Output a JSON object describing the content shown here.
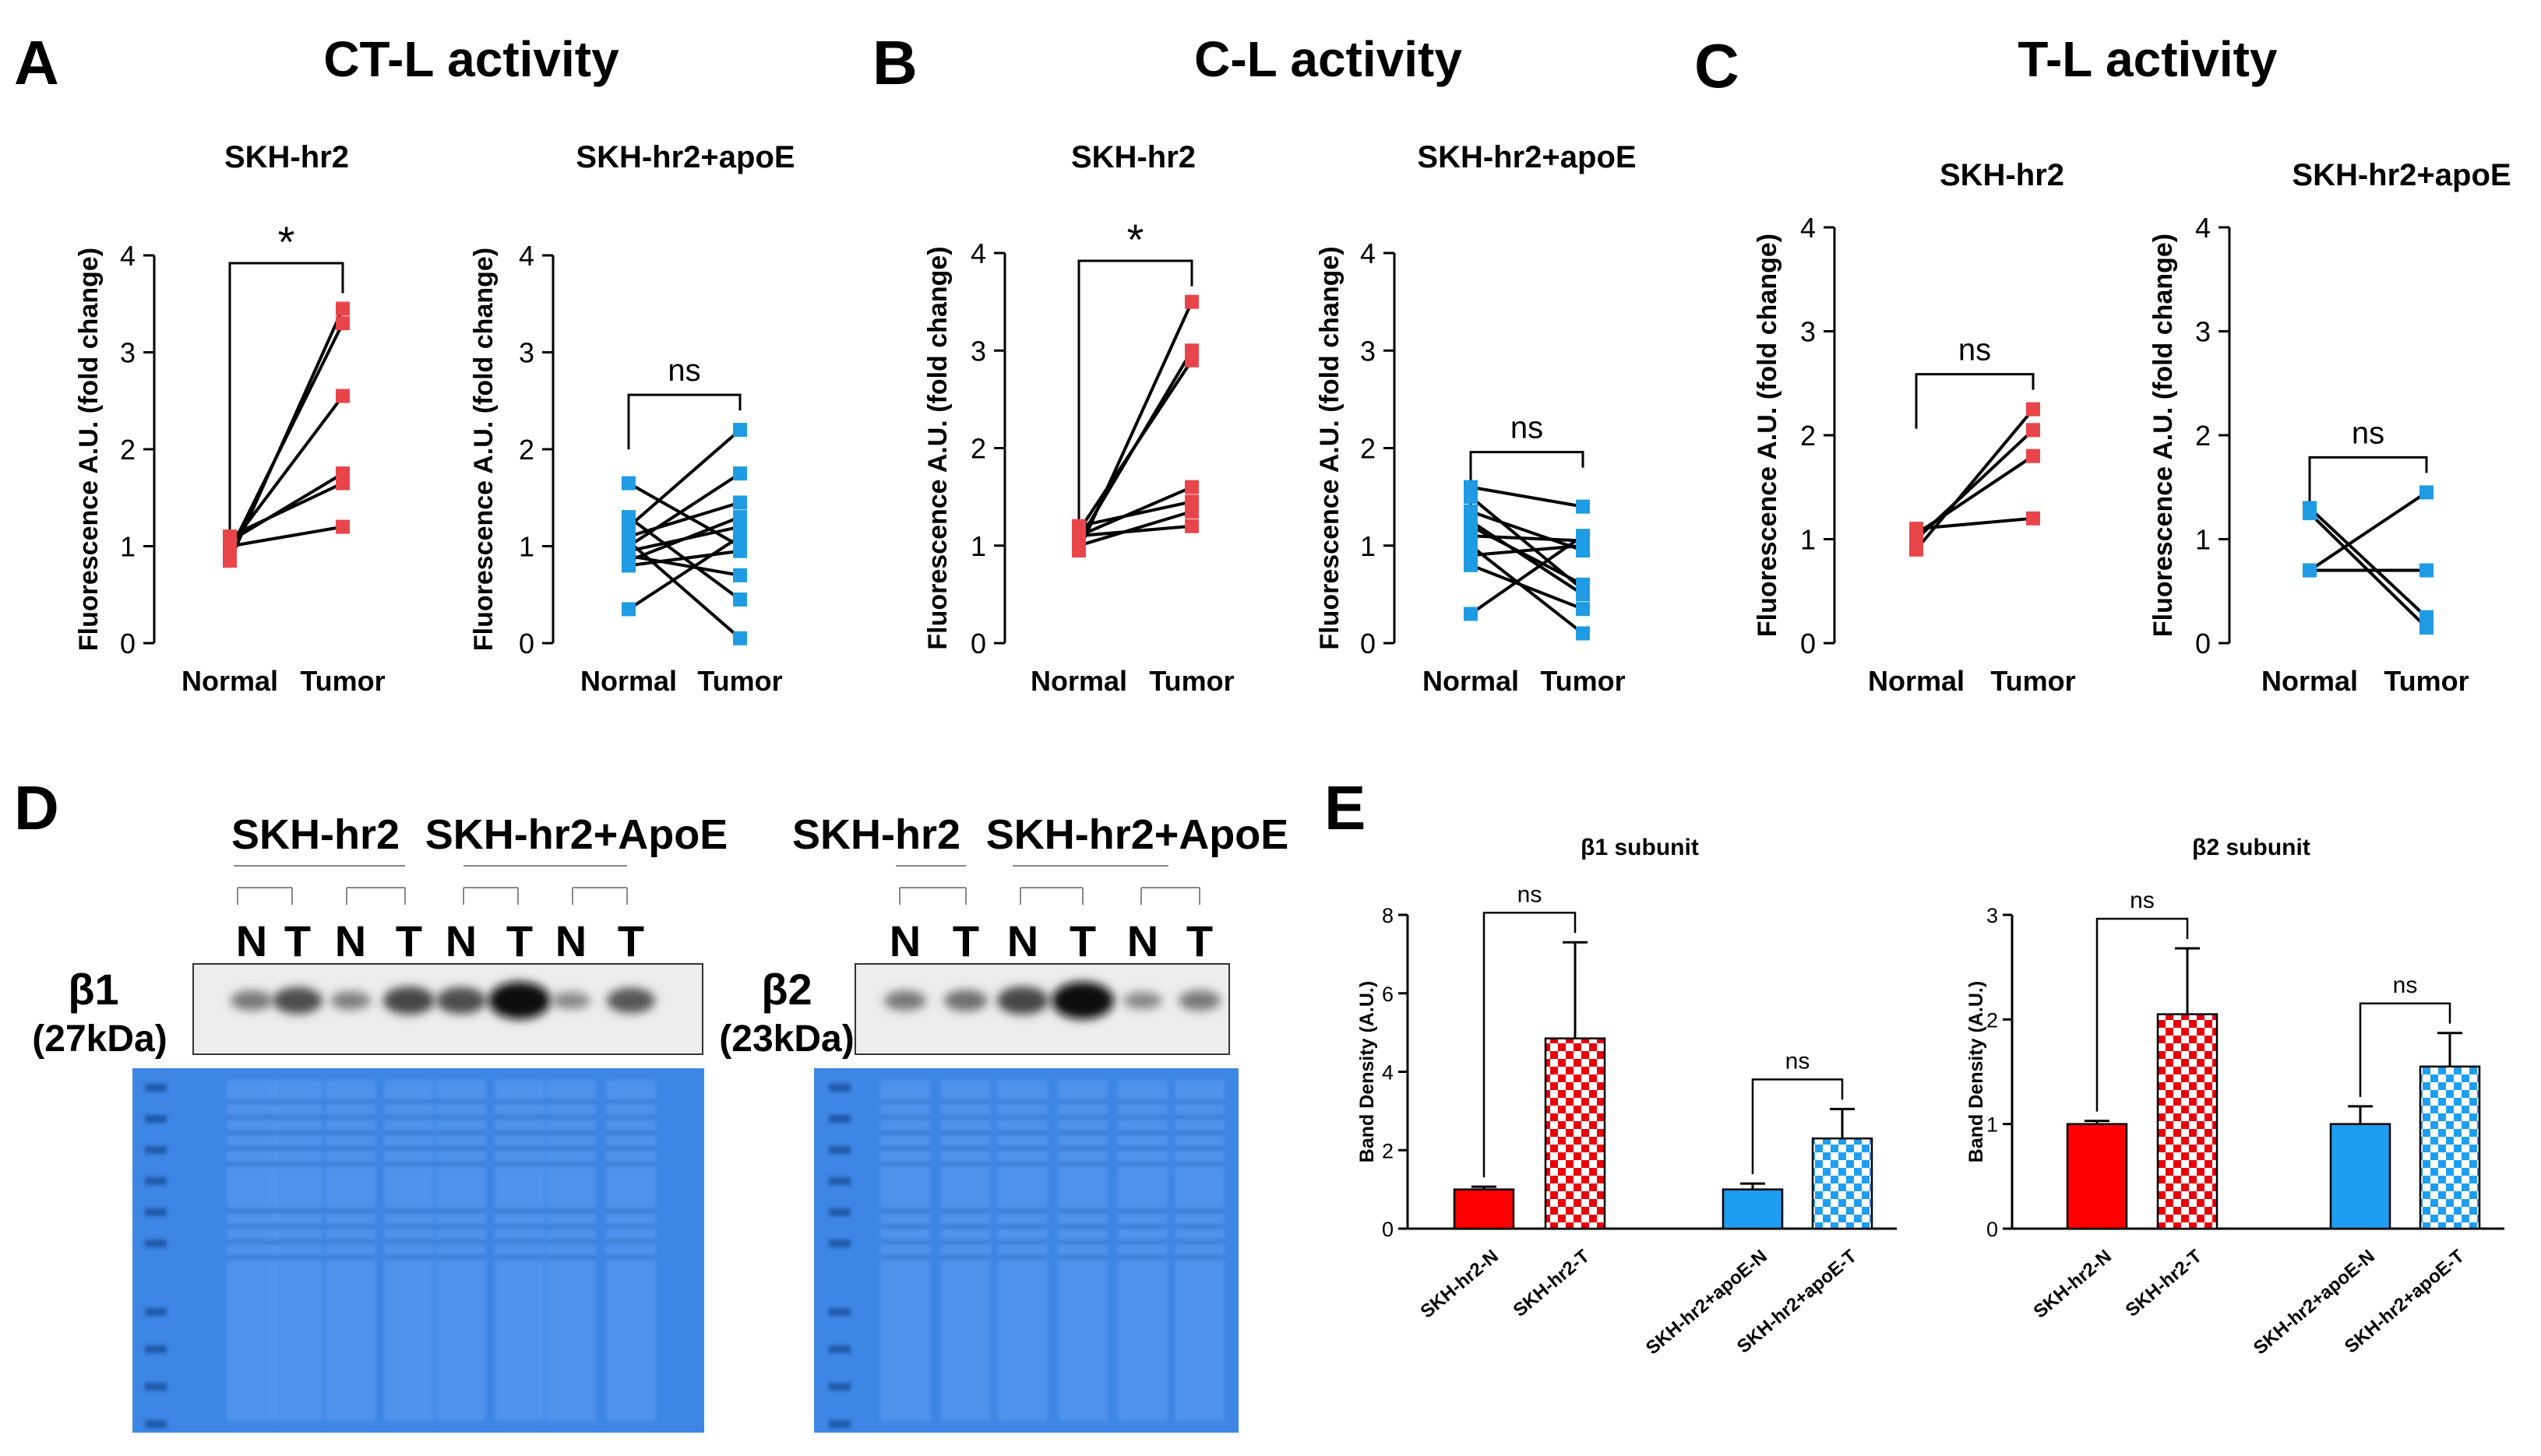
{
  "panels": {
    "A": {
      "letter": "A",
      "title": "CT-L activity"
    },
    "B": {
      "letter": "B",
      "title": "C-L activity"
    },
    "C": {
      "letter": "C",
      "title": "T-L activity"
    },
    "D": {
      "letter": "D"
    },
    "E": {
      "letter": "E"
    }
  },
  "colors": {
    "red": "#e8454a",
    "blue": "#1e9be3",
    "bar_red": "#ff0000",
    "bar_blue": "#1e9ef0",
    "gel": "#3d86e6",
    "black": "#000000"
  },
  "blot": {
    "left": {
      "group1": "SKH-hr2",
      "group2": "SKH-hr2+ApoE",
      "lanes": [
        "N",
        "T",
        "N",
        "T",
        "N",
        "T",
        "N",
        "T"
      ],
      "band_label": "β1",
      "kda": "(27kDa)",
      "intensities": [
        0.35,
        0.6,
        0.3,
        0.65,
        0.6,
        1.0,
        0.25,
        0.55
      ]
    },
    "right": {
      "group1": "SKH-hr2",
      "group2": "SKH-hr2+ApoE",
      "lanes": [
        "N",
        "T",
        "N",
        "T",
        "N",
        "T"
      ],
      "band_label": "β2",
      "kda": "(23kDa)",
      "intensities": [
        0.35,
        0.4,
        0.65,
        1.0,
        0.25,
        0.35
      ]
    }
  },
  "chart_data": [
    {
      "id": "A1",
      "type": "scatter",
      "title": "SKH-hr2",
      "ylabel": "Fluorescence A.U. (fold change)",
      "categories": [
        "Normal",
        "Tumor"
      ],
      "ylim": [
        0,
        4
      ],
      "yticks": [
        0,
        1,
        2,
        3,
        4
      ],
      "color": "red",
      "sig": "*",
      "pairs": [
        [
          0.85,
          3.45
        ],
        [
          0.95,
          3.3
        ],
        [
          1.0,
          2.55
        ],
        [
          1.05,
          1.75
        ],
        [
          1.1,
          1.65
        ],
        [
          1.0,
          1.2
        ]
      ]
    },
    {
      "id": "A2",
      "type": "scatter",
      "title": "SKH-hr2+apoE",
      "ylabel": "Fluorescence A.U. (fold change)",
      "categories": [
        "Normal",
        "Tumor"
      ],
      "ylim": [
        0,
        4
      ],
      "yticks": [
        0,
        1,
        2,
        3,
        4
      ],
      "color": "blue",
      "sig": "ns",
      "pairs": [
        [
          1.65,
          1.0
        ],
        [
          1.2,
          2.2
        ],
        [
          1.1,
          1.45
        ],
        [
          1.0,
          1.75
        ],
        [
          0.95,
          1.2
        ],
        [
          0.85,
          1.3
        ],
        [
          0.8,
          0.95
        ],
        [
          0.9,
          0.7
        ],
        [
          0.35,
          1.1
        ],
        [
          1.05,
          0.05
        ],
        [
          1.3,
          0.45
        ]
      ]
    },
    {
      "id": "B1",
      "type": "scatter",
      "title": "SKH-hr2",
      "ylabel": "Fluorescence A.U. (fold change)",
      "categories": [
        "Normal",
        "Tumor"
      ],
      "ylim": [
        0,
        4
      ],
      "yticks": [
        0,
        1,
        2,
        3,
        4
      ],
      "color": "red",
      "sig": "*",
      "pairs": [
        [
          1.05,
          3.0
        ],
        [
          1.15,
          2.9
        ],
        [
          1.1,
          1.6
        ],
        [
          1.2,
          1.45
        ],
        [
          1.0,
          1.35
        ],
        [
          1.1,
          1.2
        ],
        [
          0.95,
          3.5
        ]
      ]
    },
    {
      "id": "B2",
      "type": "scatter",
      "title": "SKH-hr2+apoE",
      "ylabel": "Fluorescence A.U. (fold change)",
      "categories": [
        "Normal",
        "Tumor"
      ],
      "ylim": [
        0,
        4
      ],
      "yticks": [
        0,
        1,
        2,
        3,
        4
      ],
      "color": "blue",
      "sig": "ns",
      "pairs": [
        [
          1.6,
          1.4
        ],
        [
          1.5,
          0.55
        ],
        [
          1.35,
          0.95
        ],
        [
          1.2,
          0.6
        ],
        [
          1.1,
          1.05
        ],
        [
          1.0,
          0.1
        ],
        [
          0.9,
          1.0
        ],
        [
          0.8,
          0.35
        ],
        [
          1.25,
          0.5
        ],
        [
          0.3,
          1.1
        ]
      ]
    },
    {
      "id": "C1",
      "type": "scatter",
      "title": "SKH-hr2",
      "ylabel": "Fluorescence A.U. (fold change)",
      "categories": [
        "Normal",
        "Tumor"
      ],
      "ylim": [
        0,
        4
      ],
      "yticks": [
        0,
        1,
        2,
        3,
        4
      ],
      "color": "red",
      "sig": "ns",
      "pairs": [
        [
          0.9,
          2.25
        ],
        [
          1.0,
          2.05
        ],
        [
          1.05,
          1.8
        ],
        [
          1.1,
          1.2
        ]
      ]
    },
    {
      "id": "C2",
      "type": "scatter",
      "title": "SKH-hr2+apoE",
      "ylabel": "Fluorescence A.U. (fold change)",
      "categories": [
        "Normal",
        "Tumor"
      ],
      "ylim": [
        0,
        4
      ],
      "yticks": [
        0,
        1,
        2,
        3,
        4
      ],
      "color": "blue",
      "sig": "ns",
      "pairs": [
        [
          1.3,
          0.25
        ],
        [
          1.25,
          0.15
        ],
        [
          0.7,
          1.45
        ],
        [
          0.7,
          0.7
        ]
      ]
    },
    {
      "id": "E1",
      "type": "bar",
      "title": "β1 subunit",
      "ylabel": "Band Density (A.U.)",
      "ylim": [
        0,
        8
      ],
      "yticks": [
        0,
        2,
        4,
        6,
        8
      ],
      "categories": [
        "SKH-hr2-N",
        "SKH-hr2-T",
        "SKH-hr2+apoE-N",
        "SKH-hr2+apoE-T"
      ],
      "values": [
        1.0,
        4.85,
        1.0,
        2.3
      ],
      "errors": [
        0.07,
        2.45,
        0.15,
        0.75
      ],
      "styles": [
        "red-solid",
        "red-check",
        "blue-solid",
        "blue-check"
      ],
      "sig": [
        {
          "pair": [
            0,
            1
          ],
          "label": "ns"
        },
        {
          "pair": [
            2,
            3
          ],
          "label": "ns"
        }
      ]
    },
    {
      "id": "E2",
      "type": "bar",
      "title": "β2 subunit",
      "ylabel": "Band Density (A.U.)",
      "ylim": [
        0,
        3
      ],
      "yticks": [
        0,
        1,
        2,
        3
      ],
      "categories": [
        "SKH-hr2-N",
        "SKH-hr2-T",
        "SKH-hr2+apoE-N",
        "SKH-hr2+apoE-T"
      ],
      "values": [
        1.0,
        2.05,
        1.0,
        1.55
      ],
      "errors": [
        0.03,
        0.63,
        0.17,
        0.32
      ],
      "styles": [
        "red-solid",
        "red-check",
        "blue-solid",
        "blue-check"
      ],
      "sig": [
        {
          "pair": [
            0,
            1
          ],
          "label": "ns"
        },
        {
          "pair": [
            2,
            3
          ],
          "label": "ns"
        }
      ]
    }
  ]
}
